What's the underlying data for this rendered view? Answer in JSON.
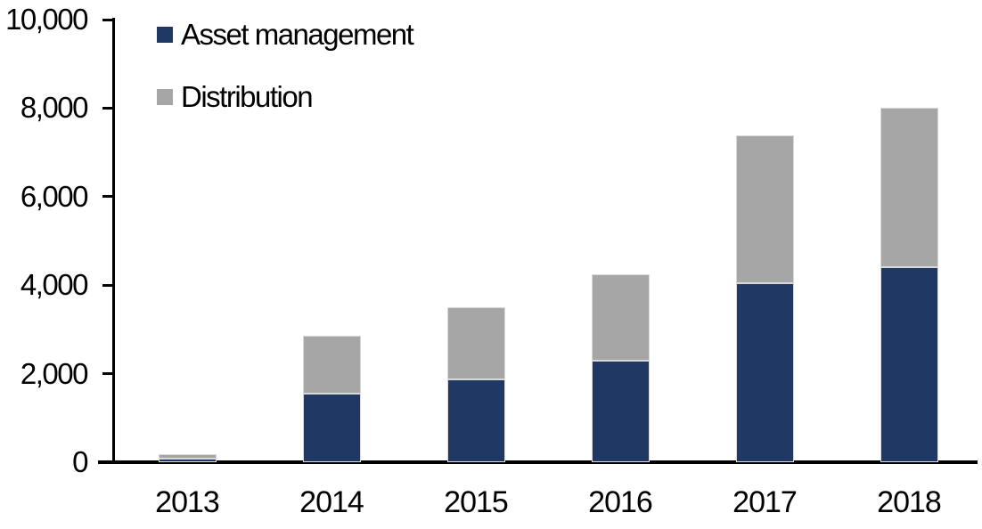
{
  "chart_data": {
    "type": "bar",
    "stacked": true,
    "title": "",
    "xlabel": "",
    "ylabel": "",
    "categories": [
      "2013",
      "2014",
      "2015",
      "2016",
      "2017",
      "2018"
    ],
    "series": [
      {
        "name": "Asset management",
        "color": "#1f3864",
        "values": [
          80,
          1540,
          1880,
          2290,
          4040,
          4410
        ]
      },
      {
        "name": "Distribution",
        "color": "#a6a6a6",
        "values": [
          110,
          1320,
          1620,
          1950,
          3350,
          3590
        ]
      }
    ],
    "totals": [
      190,
      2860,
      3500,
      4240,
      7390,
      8000
    ],
    "ylim": [
      0,
      10000
    ],
    "y_ticks": [
      {
        "value": 0,
        "label": "0"
      },
      {
        "value": 2000,
        "label": "2,000"
      },
      {
        "value": 4000,
        "label": "4,000"
      },
      {
        "value": 6000,
        "label": "6,000"
      },
      {
        "value": 8000,
        "label": "8,000"
      },
      {
        "value": 10000,
        "label": "10,000"
      }
    ],
    "grid": false,
    "legend_position": "top-left"
  },
  "legend": {
    "items": [
      {
        "label": "Asset management",
        "color": "#1f3864"
      },
      {
        "label": "Distribution",
        "color": "#a6a6a6"
      }
    ]
  },
  "colors": {
    "axis": "#000000",
    "background": "#ffffff",
    "bar_border": "#d9d9d9"
  }
}
